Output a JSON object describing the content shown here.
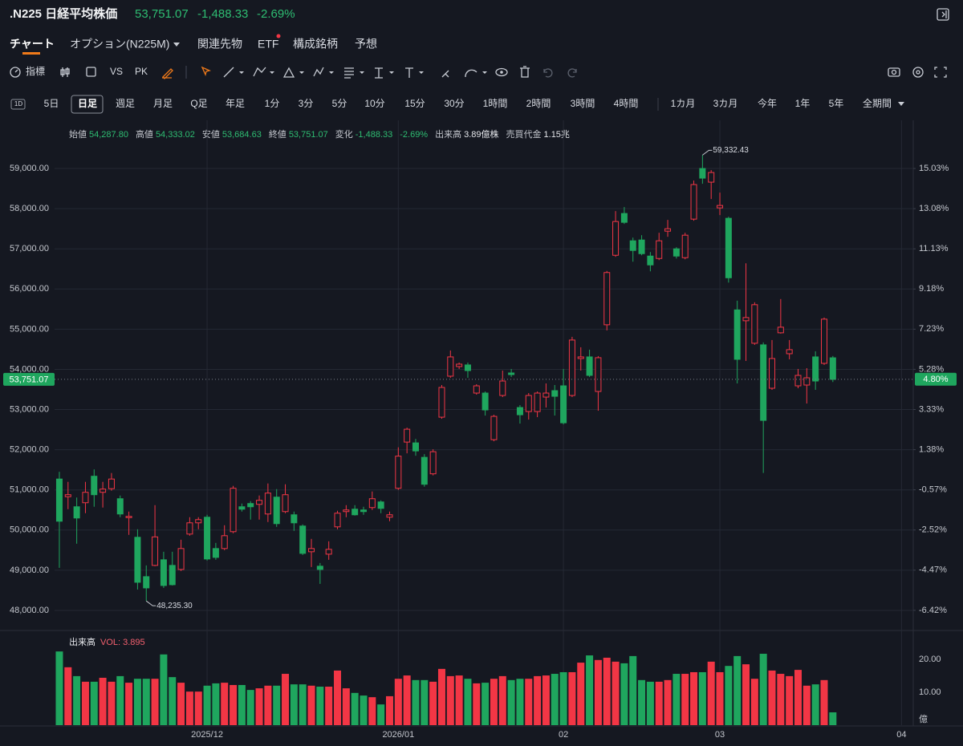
{
  "header": {
    "symbol": ".N225 日経平均株価",
    "price": "53,751.07",
    "change": "-1,488.33",
    "change_pct": "-2.69%"
  },
  "tabs": [
    "チャート",
    "オプション(N225M)",
    "関連先物",
    "ETF",
    "構成銘柄",
    "予想"
  ],
  "toolbar": [
    "指標",
    "VS",
    "PK"
  ],
  "periods": [
    "1D",
    "5日",
    "日足",
    "週足",
    "月足",
    "Q足",
    "年足",
    "1分",
    "3分",
    "5分",
    "10分",
    "15分",
    "30分",
    "1時間",
    "2時間",
    "3時間",
    "4時間",
    "1カ月",
    "3カ月",
    "今年",
    "1年",
    "5年",
    "全期間"
  ],
  "info": [
    {
      "label": "始値",
      "value": "54,287.80",
      "color": "#2ebd72"
    },
    {
      "label": "高値",
      "value": "54,333.02",
      "color": "#2ebd72"
    },
    {
      "label": "安値",
      "value": "53,684.63",
      "color": "#2ebd72"
    },
    {
      "label": "終値",
      "value": "53,751.07",
      "color": "#2ebd72"
    },
    {
      "label": "変化",
      "value": "-1,488.33",
      "color": "#2ebd72"
    },
    {
      "value": "-2.69%",
      "color": "#2ebd72"
    },
    {
      "label": "出来高",
      "value": "3.89億株",
      "color": "#e6e8ec"
    },
    {
      "label": "売買代金",
      "value": "1.15兆",
      "color": "#e6e8ec"
    }
  ],
  "chart_data": [
    {
      "type": "candlestick",
      "up_color": "#f23645",
      "down_color": "#1fa65e",
      "open": [
        51270,
        50830,
        50580,
        50680,
        51340,
        50940,
        51030,
        50780,
        50310,
        49820,
        48840,
        49120,
        49260,
        49120,
        49020,
        49900,
        50180,
        50320,
        49540,
        49540,
        49960,
        50580,
        50660,
        50640,
        50400,
        50820,
        50460,
        50380,
        50100,
        49460,
        49100,
        49400,
        50080,
        50460,
        50520,
        50500,
        50560,
        50700,
        50320,
        51040,
        52190,
        52170,
        51810,
        51400,
        52810,
        53830,
        54070,
        54110,
        53410,
        53410,
        52250,
        53350,
        53910,
        53050,
        52950,
        52950,
        53310,
        53470,
        53590,
        53350,
        54270,
        54310,
        53450,
        55110,
        56840,
        57880,
        57200,
        57220,
        56820,
        56760,
        57440,
        57000,
        56780,
        57740,
        59000,
        58660,
        58020,
        57760,
        55480,
        55210,
        54650,
        54610,
        53530,
        54910,
        54390,
        53590,
        53610,
        54310,
        54150,
        54287.8
      ],
      "high": [
        51450,
        51200,
        50810,
        51200,
        51510,
        51200,
        51420,
        50860,
        50460,
        50020,
        49120,
        50620,
        49460,
        49460,
        49760,
        50320,
        50320,
        50380,
        49680,
        50120,
        51100,
        50660,
        50720,
        50860,
        51160,
        51020,
        51140,
        50460,
        50140,
        49780,
        49180,
        49720,
        50480,
        50620,
        50620,
        50580,
        50960,
        50740,
        50460,
        52060,
        52550,
        52270,
        51890,
        52010,
        53610,
        54470,
        54170,
        54170,
        53630,
        53450,
        52870,
        53970,
        54010,
        53110,
        53410,
        53450,
        53650,
        53610,
        54010,
        54810,
        54550,
        54490,
        54330,
        56450,
        57940,
        58040,
        57280,
        57340,
        56920,
        57400,
        57720,
        57040,
        57400,
        58700,
        59332.43,
        58960,
        58400,
        57800,
        55710,
        56640,
        55670,
        54670,
        54730,
        55750,
        54730,
        54010,
        54030,
        54450,
        55290,
        54333.02
      ],
      "low": [
        49060,
        50520,
        49660,
        50420,
        50580,
        50560,
        50980,
        50320,
        49880,
        48520,
        48235.3,
        49100,
        48560,
        48620,
        48980,
        49860,
        50020,
        49240,
        49260,
        49500,
        49920,
        50460,
        50260,
        50260,
        50200,
        50080,
        50420,
        49980,
        49380,
        49080,
        48660,
        49260,
        50020,
        50320,
        50360,
        50380,
        50500,
        50420,
        50220,
        51000,
        51910,
        51850,
        51080,
        51360,
        52770,
        53790,
        54010,
        53790,
        53370,
        52850,
        52210,
        53310,
        53810,
        52650,
        52750,
        52810,
        53050,
        52850,
        52630,
        53310,
        53970,
        53810,
        52970,
        54970,
        56800,
        57620,
        56680,
        56840,
        56440,
        56720,
        57300,
        56760,
        56740,
        57700,
        58620,
        58240,
        57840,
        56160,
        53650,
        54210,
        54610,
        51420,
        53490,
        54890,
        54250,
        53530,
        53150,
        53490,
        54110,
        53684.63
      ],
      "close": [
        50220,
        50880,
        50300,
        50940,
        50880,
        51020,
        51270,
        50400,
        50340,
        48700,
        48560,
        49830,
        48620,
        48640,
        49540,
        50180,
        50260,
        49280,
        49320,
        49860,
        51040,
        50520,
        50580,
        50740,
        50920,
        50160,
        50880,
        50180,
        49420,
        49540,
        49020,
        49520,
        50420,
        50500,
        50380,
        50460,
        50780,
        50540,
        50380,
        51840,
        52510,
        51970,
        51140,
        51950,
        53550,
        54310,
        54130,
        53970,
        53590,
        52990,
        52830,
        53710,
        53870,
        52870,
        53350,
        53410,
        53410,
        53330,
        52670,
        54730,
        54310,
        53850,
        54290,
        56410,
        57680,
        57660,
        56960,
        56880,
        56600,
        57200,
        57500,
        56820,
        57340,
        58600,
        58760,
        58900,
        58080,
        56280,
        54250,
        55290,
        55610,
        52730,
        54270,
        55050,
        54490,
        53850,
        53790,
        53710,
        55250,
        53751.07
      ],
      "xlim": [
        -0.55,
        98.25
      ],
      "xticks": [
        {
          "value": 17,
          "label": "2025/12"
        },
        {
          "value": 39,
          "label": "2026/01"
        },
        {
          "value": 58,
          "label": "02"
        },
        {
          "value": 76,
          "label": "03"
        },
        {
          "value": 96.9,
          "label": "04"
        }
      ],
      "ylim": [
        47520,
        59600
      ],
      "yticks": [
        {
          "value": 48000,
          "label": "48,000.00"
        },
        {
          "value": 49000,
          "label": "49,000.00"
        },
        {
          "value": 50000,
          "label": "50,000.00"
        },
        {
          "value": 51000,
          "label": "51,000.00"
        },
        {
          "value": 52000,
          "label": "52,000.00"
        },
        {
          "value": 53000,
          "label": "53,000.00"
        },
        {
          "value": 54000,
          "label": "54,000.00"
        },
        {
          "value": 55000,
          "label": "55,000.00"
        },
        {
          "value": 56000,
          "label": "56,000.00"
        },
        {
          "value": 57000,
          "label": "57,000.00"
        },
        {
          "value": 58000,
          "label": "58,000.00"
        },
        {
          "value": 59000,
          "label": "59,000.00"
        }
      ],
      "y2lim": [
        -7.36,
        16.2
      ],
      "y2ticks": [
        {
          "value": -6.42,
          "label": "-6.42%"
        },
        {
          "value": -4.47,
          "label": "-4.47%"
        },
        {
          "value": -2.52,
          "label": "-2.52%"
        },
        {
          "value": -0.57,
          "label": "-0.57%"
        },
        {
          "value": 1.38,
          "label": "1.38%"
        },
        {
          "value": 3.33,
          "label": "3.33%"
        },
        {
          "value": 5.28,
          "label": "5.28%"
        },
        {
          "value": 7.23,
          "label": "7.23%"
        },
        {
          "value": 9.18,
          "label": "9.18%"
        },
        {
          "value": 11.13,
          "label": "11.13%"
        },
        {
          "value": 13.08,
          "label": "13.08%"
        },
        {
          "value": 15.03,
          "label": "15.03%"
        }
      ],
      "grid": true,
      "last_price": {
        "value": 53751.07,
        "label": "53,751.07"
      },
      "last_pct": {
        "value": 4.8,
        "label": "4.80%"
      },
      "max_label": {
        "label": "59,332.43",
        "index": 74
      },
      "min_label": {
        "label": "48,235.30",
        "index": 10
      }
    },
    {
      "type": "bar",
      "title": "出来高",
      "label": "VOL: 3.895",
      "up_color": "#f23645",
      "down_color": "#1fa65e",
      "values": [
        22.4,
        17.6,
        14.9,
        13.2,
        13.2,
        14.4,
        13.2,
        14.9,
        12.9,
        14.1,
        14.1,
        14.1,
        21.5,
        14.6,
        12.9,
        10.2,
        10.2,
        12.0,
        12.7,
        12.9,
        12.2,
        12.2,
        10.7,
        11.2,
        12.0,
        12.0,
        15.6,
        12.4,
        12.4,
        12.0,
        11.7,
        11.7,
        16.6,
        11.2,
        9.8,
        9.0,
        8.5,
        6.3,
        8.8,
        14.1,
        15.1,
        13.7,
        13.7,
        13.2,
        17.1,
        14.9,
        15.1,
        14.1,
        12.7,
        12.9,
        14.1,
        14.9,
        13.7,
        14.1,
        14.1,
        14.9,
        15.1,
        15.6,
        16.1,
        16.1,
        19.0,
        21.2,
        19.8,
        20.5,
        19.3,
        18.8,
        21.0,
        13.7,
        13.2,
        13.2,
        13.7,
        15.6,
        15.6,
        16.1,
        16.1,
        19.3,
        16.1,
        18.0,
        21.0,
        18.5,
        14.1,
        21.7,
        16.6,
        15.6,
        14.9,
        16.8,
        12.0,
        12.4,
        13.7,
        3.895
      ],
      "xlim": [
        -0.55,
        98.25
      ],
      "ylim": [
        0,
        27.8
      ],
      "yticks": [
        {
          "value": 0,
          "label": "億"
        },
        {
          "value": 10,
          "label": "10.00"
        },
        {
          "value": 20,
          "label": "20.00"
        }
      ]
    }
  ]
}
